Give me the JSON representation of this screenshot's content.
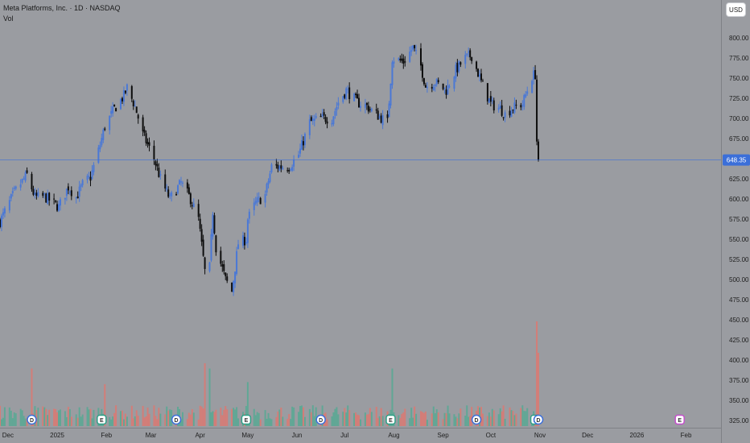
{
  "header": {
    "title": "Meta Platforms, Inc. · 1D · NASDAQ",
    "volume_label": "Vol"
  },
  "currency_button": "USD",
  "colors": {
    "background": "#9a9ca1",
    "up": "#4a78d6",
    "down": "#0d0d0d",
    "price_line": "#3b6fd9",
    "vol_up": "#5aa894",
    "vol_down": "#d97a73",
    "dividend_marker": "#3b6fd9",
    "earnings_marker": "#2f9f86",
    "future_earnings_marker": "#c44fcc"
  },
  "chart_data": {
    "type": "candlestick",
    "title": "Meta Platforms, Inc. · 1D · NASDAQ",
    "y_axis": {
      "ticks": [
        "800.00",
        "775.00",
        "750.00",
        "725.00",
        "700.00",
        "675.00",
        "650.00",
        "625.00",
        "600.00",
        "575.00",
        "550.00",
        "525.00",
        "500.00",
        "475.00",
        "450.00",
        "425.00",
        "400.00",
        "375.00",
        "350.00",
        "325.00"
      ],
      "range": [
        317,
        810
      ]
    },
    "x_axis": {
      "ticks": [
        {
          "label": "Dec",
          "date": "2024-12-01"
        },
        {
          "label": "2025",
          "date": "2025-01-01"
        },
        {
          "label": "Feb",
          "date": "2025-02-01"
        },
        {
          "label": "Mar",
          "date": "2025-03-01"
        },
        {
          "label": "Apr",
          "date": "2025-04-01"
        },
        {
          "label": "May",
          "date": "2025-05-01"
        },
        {
          "label": "Jun",
          "date": "2025-06-01"
        },
        {
          "label": "Jul",
          "date": "2025-07-01"
        },
        {
          "label": "Aug",
          "date": "2025-08-01"
        },
        {
          "label": "Sep",
          "date": "2025-09-01"
        },
        {
          "label": "Oct",
          "date": "2025-10-01"
        },
        {
          "label": "Nov",
          "date": "2025-11-01"
        },
        {
          "label": "Dec",
          "date": "2025-12-01"
        },
        {
          "label": "2026",
          "date": "2026-01-01"
        },
        {
          "label": "Feb",
          "date": "2026-02-01"
        }
      ],
      "range": [
        "2024-11-26",
        "2026-02-23"
      ]
    },
    "last_price": "648.35",
    "last_price_value": 648.35,
    "anchors": [
      {
        "date": "2024-11-26",
        "close": 572
      },
      {
        "date": "2024-12-05",
        "close": 608
      },
      {
        "date": "2024-12-13",
        "close": 630
      },
      {
        "date": "2024-12-18",
        "close": 602
      },
      {
        "date": "2024-12-24",
        "close": 603
      },
      {
        "date": "2025-01-02",
        "close": 590
      },
      {
        "date": "2025-01-08",
        "close": 615
      },
      {
        "date": "2025-01-13",
        "close": 602
      },
      {
        "date": "2025-01-17",
        "close": 618
      },
      {
        "date": "2025-01-22",
        "close": 627
      },
      {
        "date": "2025-01-27",
        "close": 660
      },
      {
        "date": "2025-01-31",
        "close": 690
      },
      {
        "date": "2025-02-06",
        "close": 712
      },
      {
        "date": "2025-02-12",
        "close": 728
      },
      {
        "date": "2025-02-14",
        "close": 738
      },
      {
        "date": "2025-02-19",
        "close": 715
      },
      {
        "date": "2025-02-24",
        "close": 680
      },
      {
        "date": "2025-03-03",
        "close": 650
      },
      {
        "date": "2025-03-07",
        "close": 625
      },
      {
        "date": "2025-03-13",
        "close": 600
      },
      {
        "date": "2025-03-20",
        "close": 620
      },
      {
        "date": "2025-03-26",
        "close": 600
      },
      {
        "date": "2025-03-31",
        "close": 575
      },
      {
        "date": "2025-04-04",
        "close": 510
      },
      {
        "date": "2025-04-07",
        "close": 515
      },
      {
        "date": "2025-04-09",
        "close": 585
      },
      {
        "date": "2025-04-11",
        "close": 540
      },
      {
        "date": "2025-04-17",
        "close": 500
      },
      {
        "date": "2025-04-21",
        "close": 485
      },
      {
        "date": "2025-04-25",
        "close": 545
      },
      {
        "date": "2025-04-30",
        "close": 550
      },
      {
        "date": "2025-05-01",
        "close": 575
      },
      {
        "date": "2025-05-06",
        "close": 595
      },
      {
        "date": "2025-05-12",
        "close": 605
      },
      {
        "date": "2025-05-16",
        "close": 640
      },
      {
        "date": "2025-05-21",
        "close": 640
      },
      {
        "date": "2025-05-27",
        "close": 640
      },
      {
        "date": "2025-06-02",
        "close": 655
      },
      {
        "date": "2025-06-09",
        "close": 695
      },
      {
        "date": "2025-06-16",
        "close": 700
      },
      {
        "date": "2025-06-23",
        "close": 700
      },
      {
        "date": "2025-06-27",
        "close": 720
      },
      {
        "date": "2025-07-02",
        "close": 735
      },
      {
        "date": "2025-07-09",
        "close": 720
      },
      {
        "date": "2025-07-15",
        "close": 715
      },
      {
        "date": "2025-07-21",
        "close": 705
      },
      {
        "date": "2025-07-28",
        "close": 695
      },
      {
        "date": "2025-07-31",
        "close": 775
      },
      {
        "date": "2025-08-07",
        "close": 770
      },
      {
        "date": "2025-08-13",
        "close": 788
      },
      {
        "date": "2025-08-18",
        "close": 765
      },
      {
        "date": "2025-08-21",
        "close": 740
      },
      {
        "date": "2025-08-27",
        "close": 745
      },
      {
        "date": "2025-09-03",
        "close": 735
      },
      {
        "date": "2025-09-09",
        "close": 760
      },
      {
        "date": "2025-09-15",
        "close": 775
      },
      {
        "date": "2025-09-19",
        "close": 778
      },
      {
        "date": "2025-09-25",
        "close": 745
      },
      {
        "date": "2025-10-01",
        "close": 718
      },
      {
        "date": "2025-10-07",
        "close": 712
      },
      {
        "date": "2025-10-10",
        "close": 705
      },
      {
        "date": "2025-10-14",
        "close": 712
      },
      {
        "date": "2025-10-21",
        "close": 718
      },
      {
        "date": "2025-10-27",
        "close": 752
      },
      {
        "date": "2025-10-29",
        "close": 755
      },
      {
        "date": "2025-10-30",
        "close": 672
      },
      {
        "date": "2025-10-31",
        "close": 648.35
      }
    ],
    "volume_spikes": [
      {
        "date": "2024-12-16",
        "rel": 0.55
      },
      {
        "date": "2025-01-31",
        "rel": 0.4
      },
      {
        "date": "2025-04-04",
        "rel": 0.6
      },
      {
        "date": "2025-04-07",
        "rel": 0.55
      },
      {
        "date": "2025-05-01",
        "rel": 0.42
      },
      {
        "date": "2025-07-31",
        "rel": 0.55
      },
      {
        "date": "2025-10-30",
        "rel": 1.0
      },
      {
        "date": "2025-10-31",
        "rel": 0.7
      }
    ],
    "events": [
      {
        "type": "dividend",
        "label": "D",
        "date": "2024-12-16"
      },
      {
        "type": "earnings",
        "label": "E",
        "date": "2025-01-29"
      },
      {
        "type": "dividend",
        "label": "D",
        "date": "2025-03-17"
      },
      {
        "type": "earnings",
        "label": "E",
        "date": "2025-04-30"
      },
      {
        "type": "dividend",
        "label": "D",
        "date": "2025-06-16"
      },
      {
        "type": "earnings",
        "label": "E",
        "date": "2025-07-30"
      },
      {
        "type": "dividend",
        "label": "D",
        "date": "2025-09-22"
      },
      {
        "type": "earnings",
        "label": "E",
        "date": "2025-10-29"
      },
      {
        "type": "dividend",
        "label": "D",
        "date": "2025-10-31"
      },
      {
        "type": "future_earnings",
        "label": "E",
        "date": "2026-01-28"
      }
    ]
  }
}
